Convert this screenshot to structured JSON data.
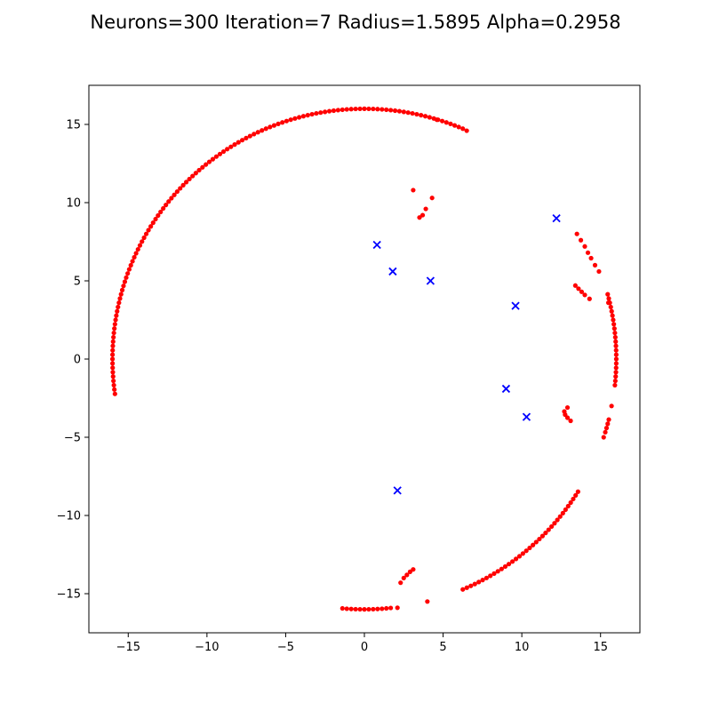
{
  "chart_data": {
    "type": "scatter",
    "title": "Neurons=300 Iteration=7 Radius=1.5895 Alpha=0.2958",
    "xlabel": "",
    "ylabel": "",
    "xlim": [
      -17.5,
      17.5
    ],
    "ylim": [
      -17.5,
      17.5
    ],
    "grid": false,
    "x_ticks": [
      -15,
      -10,
      -5,
      0,
      5,
      10,
      15
    ],
    "y_ticks": [
      -15,
      -10,
      -5,
      0,
      5,
      10,
      15
    ],
    "x_tick_labels": [
      "−15",
      "−10",
      "−5",
      "0",
      "5",
      "10",
      "15"
    ],
    "y_tick_labels": [
      "−15",
      "−10",
      "−5",
      "0",
      "5",
      "10",
      "15"
    ],
    "series": [
      {
        "marker": "circle",
        "color": "#ff0000",
        "points": [
          [
            4.6,
            15.3
          ],
          [
            6.5,
            14.6
          ],
          [
            15.5,
            3.6
          ],
          [
            15.7,
            -3.0
          ],
          [
            15.2,
            -5.0
          ],
          [
            2.1,
            -15.9
          ],
          [
            4.0,
            -15.5
          ],
          [
            3.1,
            10.8
          ],
          [
            4.3,
            10.3
          ],
          [
            3.9,
            9.6
          ],
          [
            3.7,
            9.2
          ],
          [
            3.5,
            9.05
          ],
          [
            13.4,
            4.7
          ],
          [
            13.6,
            4.5
          ],
          [
            13.8,
            4.3
          ],
          [
            14.0,
            4.1
          ],
          [
            14.3,
            3.85
          ],
          [
            12.9,
            -3.1
          ],
          [
            12.7,
            -3.35
          ],
          [
            12.75,
            -3.55
          ],
          [
            12.9,
            -3.75
          ],
          [
            13.1,
            -3.95
          ],
          [
            2.3,
            -14.3
          ],
          [
            2.5,
            -14.0
          ],
          [
            2.7,
            -13.8
          ],
          [
            2.9,
            -13.6
          ],
          [
            3.1,
            -13.45
          ],
          [
            13.5,
            8.0
          ],
          [
            13.75,
            7.6
          ],
          [
            14.0,
            7.2
          ],
          [
            14.2,
            6.8
          ],
          [
            14.4,
            6.45
          ],
          [
            14.65,
            6.0
          ],
          [
            14.9,
            5.6
          ]
        ]
      },
      {
        "marker": "x",
        "color": "#0000ff",
        "points": [
          [
            0.8,
            7.3
          ],
          [
            1.8,
            5.6
          ],
          [
            4.2,
            5.0
          ],
          [
            12.2,
            9.0
          ],
          [
            9.6,
            3.4
          ],
          [
            9.0,
            -1.9
          ],
          [
            10.3,
            -3.7
          ],
          [
            2.1,
            -8.4
          ]
        ]
      }
    ]
  }
}
